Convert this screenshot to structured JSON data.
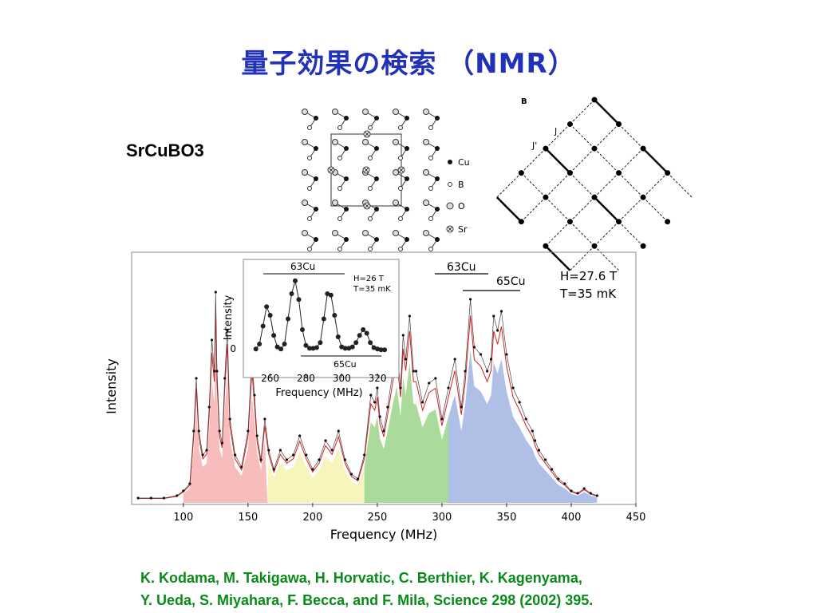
{
  "slide": {
    "title": "量子効果の検索 （NMR）",
    "compound": "SrCuBO3",
    "reference": [
      "K. Kodama, M. Takigawa, H. Horvatic, C. Berthier, K. Kagenyama,",
      "Y. Ueda, S. Miyahara, F. Becca, and F. Mila, Science 298 (2002) 395."
    ]
  },
  "crystal_legend": {
    "items": [
      {
        "symbol": "filled-small-dot",
        "label": "Cu"
      },
      {
        "symbol": "open-small-dot",
        "label": "B"
      },
      {
        "symbol": "open-large-circle",
        "label": "O"
      },
      {
        "symbol": "crossed-circle",
        "label": "Sr"
      }
    ]
  },
  "lattice": {
    "panel_label": "B",
    "bond_labels": [
      "J",
      "J'"
    ]
  },
  "colors": {
    "title": "#2232b8",
    "reference": "#0a8a1a",
    "fit_curve": "#d42020",
    "band_63cu_low": "#f4a0a0",
    "band_yellow": "#f4f0a0",
    "band_green": "#88cc70",
    "band_blue": "#8ea4dc"
  },
  "chart_data": [
    {
      "type": "line",
      "title": "",
      "xlabel": "Frequency (MHz)",
      "ylabel": "Intensity",
      "xlim": [
        60,
        450
      ],
      "x_ticks": [
        100,
        150,
        200,
        250,
        300,
        350,
        400,
        450
      ],
      "annotations": [
        "H=27.6 T",
        "T=35 mK"
      ],
      "isotope_labels": [
        "63Cu",
        "65Cu"
      ],
      "grid": false,
      "series": [
        {
          "x": [
            65,
            75,
            85,
            95,
            100,
            105,
            108,
            110,
            112,
            115,
            118,
            120,
            122,
            124,
            125,
            126,
            128,
            130,
            132,
            134,
            136,
            140,
            145,
            150,
            153,
            155,
            157,
            160,
            163,
            166,
            170,
            175,
            180,
            185,
            190,
            195,
            200,
            205,
            210,
            215,
            220,
            225,
            230,
            235,
            240,
            245,
            248,
            250,
            252,
            255,
            258,
            262,
            265,
            268,
            270,
            272,
            275,
            278,
            280,
            285,
            290,
            295,
            300,
            305,
            310,
            315,
            318,
            322,
            325,
            330,
            335,
            338,
            340,
            343,
            346,
            350,
            355,
            360,
            365,
            370,
            372,
            375,
            380,
            385,
            390,
            395,
            400,
            405,
            410,
            415,
            420
          ],
          "y": [
            0.02,
            0.02,
            0.02,
            0.03,
            0.05,
            0.08,
            0.3,
            0.52,
            0.3,
            0.2,
            0.22,
            0.4,
            0.68,
            0.55,
            0.88,
            0.55,
            0.3,
            0.25,
            0.52,
            0.72,
            0.35,
            0.2,
            0.15,
            0.3,
            0.6,
            0.45,
            0.28,
            0.18,
            0.35,
            0.22,
            0.14,
            0.22,
            0.18,
            0.2,
            0.28,
            0.2,
            0.14,
            0.18,
            0.26,
            0.22,
            0.3,
            0.18,
            0.12,
            0.1,
            0.2,
            0.45,
            0.42,
            0.48,
            0.36,
            0.3,
            0.4,
            0.55,
            0.65,
            0.48,
            0.7,
            0.6,
            0.78,
            0.55,
            0.55,
            0.42,
            0.5,
            0.52,
            0.35,
            0.48,
            0.6,
            0.4,
            0.55,
            0.85,
            0.65,
            0.62,
            0.55,
            0.6,
            0.78,
            0.72,
            0.8,
            0.62,
            0.48,
            0.42,
            0.35,
            0.3,
            0.26,
            0.22,
            0.18,
            0.14,
            0.1,
            0.08,
            0.05,
            0.04,
            0.06,
            0.04,
            0.03
          ]
        }
      ]
    },
    {
      "type": "line",
      "title": "",
      "xlabel": "Frequency (MHz)",
      "ylabel": "Intensity",
      "xlim": [
        245,
        332
      ],
      "x_ticks": [
        260,
        280,
        300,
        320
      ],
      "y_ticks": [
        0
      ],
      "annotations": [
        "H=26 T",
        "T=35 mK"
      ],
      "isotope_labels": [
        "63Cu",
        "65Cu"
      ],
      "grid": false,
      "series": [
        {
          "x": [
            252,
            254,
            256,
            258,
            260,
            262,
            264,
            266,
            268,
            270,
            272,
            274,
            276,
            278,
            280,
            282,
            284,
            286,
            288,
            290,
            292,
            294,
            296,
            298,
            300,
            302,
            304,
            306,
            308,
            310,
            312,
            314,
            316,
            318,
            320,
            322,
            324
          ],
          "y": [
            0.03,
            0.1,
            0.35,
            0.62,
            0.5,
            0.22,
            0.06,
            0.03,
            0.1,
            0.45,
            0.8,
            0.98,
            0.72,
            0.3,
            0.08,
            0.04,
            0.04,
            0.05,
            0.12,
            0.45,
            0.8,
            0.78,
            0.5,
            0.2,
            0.06,
            0.04,
            0.04,
            0.06,
            0.12,
            0.22,
            0.3,
            0.25,
            0.12,
            0.05,
            0.03,
            0.02,
            0.02
          ]
        }
      ]
    }
  ]
}
